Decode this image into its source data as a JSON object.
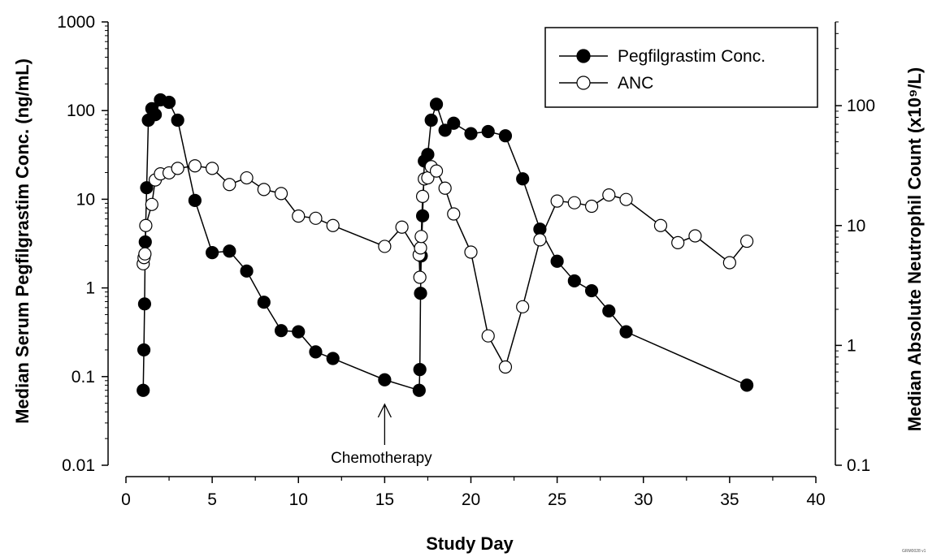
{
  "chart_data": {
    "type": "line",
    "xlabel": "Study Day",
    "ylabel_left": "Median Serum Pegfilgrastim Conc. (ng/mL)",
    "ylabel_right": "Median Absolute Neutrophil Count (x10⁹/L)",
    "x_range": [
      0,
      40
    ],
    "x_ticks": [
      "0",
      "5",
      "10",
      "15",
      "20",
      "25",
      "30",
      "35",
      "40"
    ],
    "y_left_scale": "log",
    "y_left_range": [
      0.01,
      1000
    ],
    "y_left_ticks": [
      "0.01",
      "0.1",
      "1",
      "10",
      "100",
      "1000"
    ],
    "y_right_scale": "log",
    "y_right_range": [
      0.1,
      500
    ],
    "y_right_ticks": [
      "0.1",
      "1",
      "10",
      "100"
    ],
    "grid": false,
    "legend_position": "top-right",
    "legend": [
      "Pegfilgrastim Conc.",
      "ANC"
    ],
    "annotation": {
      "text": "Chemotherapy",
      "x": 15
    },
    "corner_code": "GRM0028 v1",
    "series": [
      {
        "name": "Pegfilgrastim Conc.",
        "axis": "left",
        "marker": "filled-circle",
        "x": [
          1,
          1.04,
          1.08,
          1.12,
          1.2,
          1.3,
          1.5,
          1.7,
          2,
          2.5,
          3,
          4,
          5,
          6,
          7,
          8,
          9,
          10,
          11,
          12,
          15,
          17,
          17.04,
          17.08,
          17.12,
          17.2,
          17.3,
          17.5,
          17.7,
          18,
          18.5,
          19,
          20,
          21,
          22,
          23,
          24,
          25,
          26,
          27,
          28,
          29,
          36
        ],
        "y": [
          0.07,
          0.2,
          0.66,
          3.3,
          13.5,
          78,
          105,
          90,
          132,
          124,
          78,
          9.7,
          2.5,
          2.6,
          1.55,
          0.69,
          0.33,
          0.32,
          0.19,
          0.16,
          0.092,
          0.07,
          0.12,
          0.87,
          2.3,
          6.5,
          27,
          32,
          78,
          118,
          60,
          72,
          55,
          58,
          52,
          17,
          4.6,
          2.0,
          1.2,
          0.93,
          0.55,
          0.32,
          0.08
        ]
      },
      {
        "name": "ANC",
        "axis": "right",
        "marker": "open-circle",
        "x": [
          1,
          1.05,
          1.1,
          1.15,
          1.5,
          1.7,
          2,
          2.5,
          3,
          4,
          5,
          6,
          7,
          8,
          9,
          10,
          11,
          12,
          15,
          16,
          17,
          17.04,
          17.08,
          17.12,
          17.2,
          17.3,
          17.5,
          17.7,
          18,
          18.5,
          19,
          20,
          21,
          22,
          23,
          24,
          25,
          26,
          27,
          28,
          29,
          31,
          32,
          33,
          35,
          36
        ],
        "y": [
          4.8,
          5.4,
          5.8,
          10,
          15,
          24,
          27,
          27.5,
          30,
          31.5,
          30,
          22,
          25,
          20,
          18.5,
          12,
          11.5,
          10,
          6.7,
          9.7,
          5.7,
          3.7,
          6.5,
          8.1,
          17.5,
          24.5,
          25,
          31,
          28.5,
          20.5,
          12.5,
          6,
          1.2,
          0.66,
          2.1,
          7.6,
          16,
          15.5,
          14.5,
          18,
          16.5,
          10,
          7.2,
          8.2,
          4.9,
          7.4
        ]
      }
    ]
  }
}
